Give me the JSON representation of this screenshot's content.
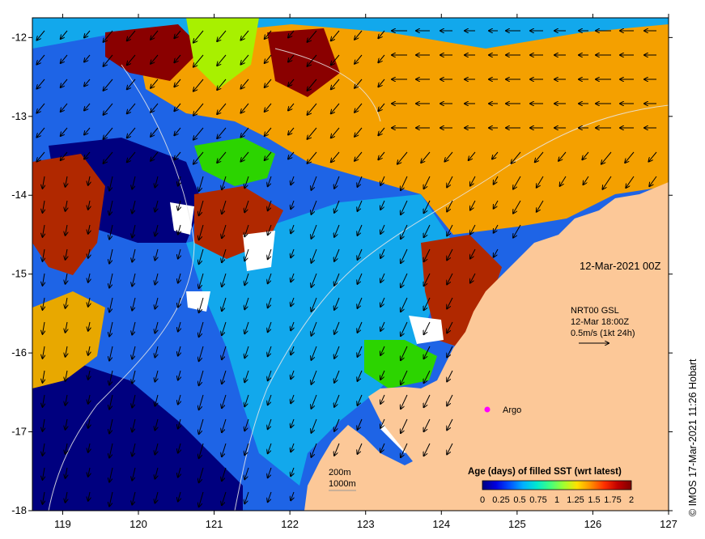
{
  "date_label": "12-Mar-2021 00Z",
  "currents_info": {
    "line1": "NRT00 GSL",
    "line2": "12-Mar 18:00Z",
    "line3": "0.5m/s (1kt 24h)"
  },
  "argo_label": "Argo",
  "contour_legend": {
    "line1": "200m",
    "line2": "1000m"
  },
  "colorbar": {
    "title": "Age (days) of filled SST (wrt latest)",
    "tick_labels": [
      "0",
      "0.25",
      "0.5",
      "0.75",
      "1",
      "1.25",
      "1.5",
      "1.75",
      "2"
    ],
    "colors": [
      "#00007f",
      "#0000e0",
      "#0050ff",
      "#00b0ff",
      "#00e8d0",
      "#40ff80",
      "#a0ff30",
      "#ffe000",
      "#ff9000",
      "#ff3000",
      "#c00000",
      "#7f0000"
    ]
  },
  "credit": "© IMOS 17-Mar-2021 11:26 Hobart",
  "x_axis": {
    "labels": [
      "119",
      "120",
      "121",
      "122",
      "123",
      "124",
      "125",
      "126",
      "127"
    ]
  },
  "y_axis": {
    "labels": [
      "-12",
      "-13",
      "-14",
      "-15",
      "-16",
      "-17",
      "-18"
    ]
  },
  "colors": {
    "land": "#fcc898",
    "deep_navy": "#00007f",
    "blue": "#1e64e6",
    "sky": "#12a8ec",
    "orange": "#f4a000",
    "amber": "#e8a800",
    "brown": "#b02800",
    "maroon": "#8a0000",
    "green": "#2cd400",
    "lime": "#a8f000",
    "white": "#ffffff",
    "argo_marker": "#ff00ff"
  }
}
